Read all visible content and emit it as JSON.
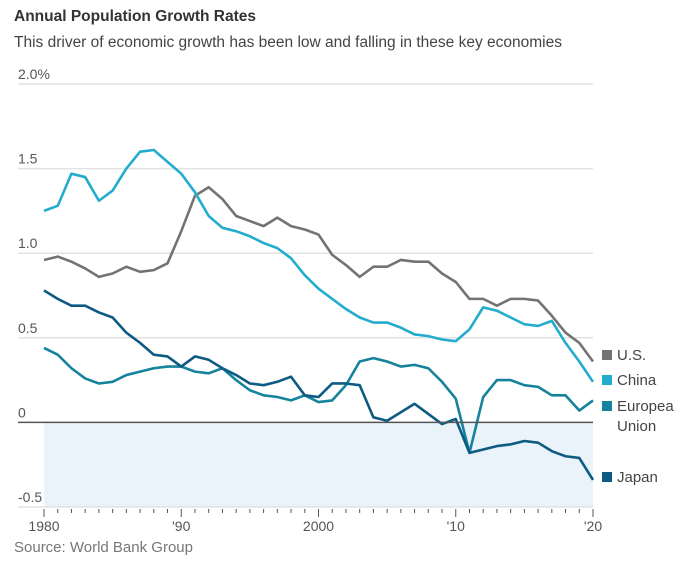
{
  "chart_data": {
    "type": "line",
    "title": "Annual Population Growth Rates",
    "subtitle": "This driver of economic growth has been low and falling in these key economies",
    "source": "Source: World Bank Group",
    "x": [
      1980,
      1981,
      1982,
      1983,
      1984,
      1985,
      1986,
      1987,
      1988,
      1989,
      1990,
      1991,
      1992,
      1993,
      1994,
      1995,
      1996,
      1997,
      1998,
      1999,
      2000,
      2001,
      2002,
      2003,
      2004,
      2005,
      2006,
      2007,
      2008,
      2009,
      2010,
      2011,
      2012,
      2013,
      2014,
      2015,
      2016,
      2017,
      2018,
      2019,
      2020
    ],
    "xlim": [
      1980,
      2020
    ],
    "ylim": [
      -0.5,
      2.0
    ],
    "x_ticks": [
      {
        "value": 1980,
        "label": "1980"
      },
      {
        "value": 1990,
        "label": "'90"
      },
      {
        "value": 2000,
        "label": "2000"
      },
      {
        "value": 2010,
        "label": "'10"
      },
      {
        "value": 2020,
        "label": "'20"
      }
    ],
    "y_ticks": [
      {
        "value": 2.0,
        "label": "2.0%"
      },
      {
        "value": 1.5,
        "label": "1.5"
      },
      {
        "value": 1.0,
        "label": "1.0"
      },
      {
        "value": 0.5,
        "label": "0.5"
      },
      {
        "value": 0,
        "label": "0"
      },
      {
        "value": -0.5,
        "label": "-0.5"
      }
    ],
    "grid": true,
    "negative_shading_color": "#eaf2fa",
    "legend_placement": "right, at line ends",
    "series": [
      {
        "name": "U.S.",
        "color": "#737373",
        "values": [
          0.96,
          0.98,
          0.95,
          0.91,
          0.86,
          0.88,
          0.92,
          0.89,
          0.9,
          0.94,
          1.13,
          1.34,
          1.39,
          1.32,
          1.22,
          1.19,
          1.16,
          1.21,
          1.16,
          1.14,
          1.11,
          0.99,
          0.93,
          0.86,
          0.92,
          0.92,
          0.96,
          0.95,
          0.95,
          0.88,
          0.83,
          0.73,
          0.73,
          0.69,
          0.73,
          0.73,
          0.72,
          0.63,
          0.53,
          0.47,
          0.36
        ]
      },
      {
        "name": "China",
        "color": "#22acce",
        "values": [
          1.25,
          1.28,
          1.47,
          1.45,
          1.31,
          1.37,
          1.5,
          1.6,
          1.61,
          1.54,
          1.47,
          1.36,
          1.22,
          1.15,
          1.13,
          1.1,
          1.06,
          1.03,
          0.97,
          0.87,
          0.79,
          0.73,
          0.67,
          0.62,
          0.59,
          0.59,
          0.56,
          0.52,
          0.51,
          0.49,
          0.48,
          0.55,
          0.68,
          0.66,
          0.62,
          0.58,
          0.57,
          0.6,
          0.47,
          0.36,
          0.24
        ]
      },
      {
        "name": "Europea Union",
        "color": "#15839c",
        "values": [
          0.44,
          0.4,
          0.32,
          0.26,
          0.23,
          0.24,
          0.28,
          0.3,
          0.32,
          0.33,
          0.33,
          0.3,
          0.29,
          0.32,
          0.25,
          0.19,
          0.16,
          0.15,
          0.13,
          0.16,
          0.12,
          0.13,
          0.22,
          0.36,
          0.38,
          0.36,
          0.33,
          0.34,
          0.32,
          0.24,
          0.14,
          -0.18,
          0.15,
          0.25,
          0.25,
          0.22,
          0.21,
          0.16,
          0.16,
          0.07,
          0.13
        ]
      },
      {
        "name": "Japan",
        "color": "#0d5b82",
        "values": [
          0.78,
          0.73,
          0.69,
          0.69,
          0.65,
          0.62,
          0.53,
          0.47,
          0.4,
          0.39,
          0.33,
          0.39,
          0.37,
          0.32,
          0.28,
          0.23,
          0.22,
          0.24,
          0.27,
          0.16,
          0.15,
          0.23,
          0.23,
          0.22,
          0.03,
          0.01,
          0.06,
          0.11,
          0.05,
          -0.01,
          0.02,
          -0.18,
          -0.16,
          -0.14,
          -0.13,
          -0.11,
          -0.12,
          -0.17,
          -0.2,
          -0.21,
          -0.34
        ]
      }
    ],
    "legend": [
      {
        "lines": [
          "U.S."
        ],
        "color": "#737373"
      },
      {
        "lines": [
          "China"
        ],
        "color": "#22acce"
      },
      {
        "lines": [
          "Europea",
          "Union"
        ],
        "color": "#15839c"
      },
      {
        "lines": [
          "Japan"
        ],
        "color": "#0d5b82"
      }
    ]
  }
}
